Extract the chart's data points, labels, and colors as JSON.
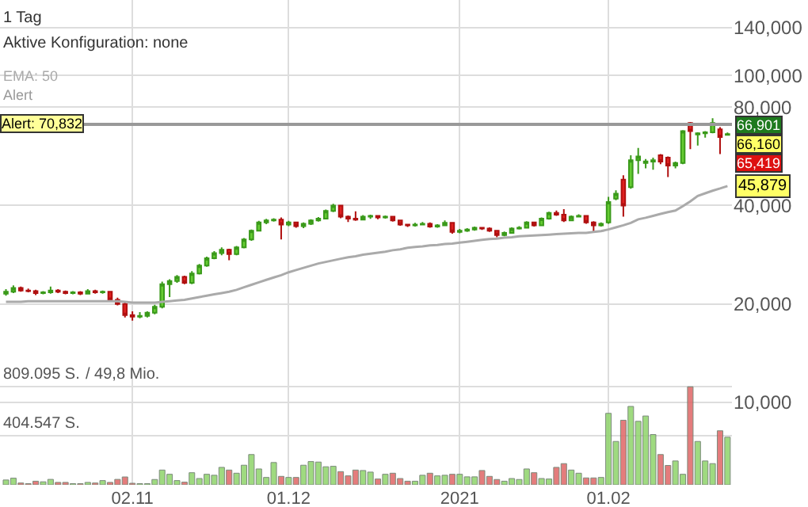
{
  "chart_data": {
    "type": "candlestick",
    "subtitle": "1 Tag",
    "annotations": [
      "Aktive Konfiguration: none",
      "Alert",
      "66,901",
      "66,160",
      "65,419",
      "/ 49,8 Mio."
    ],
    "categories": [
      null,
      null,
      null,
      null,
      null,
      null,
      null,
      null,
      null,
      null,
      null,
      null,
      null,
      null,
      null,
      null,
      null,
      "02.11",
      null,
      null,
      null,
      null,
      null,
      null,
      null,
      null,
      null,
      null,
      null,
      null,
      null,
      null,
      null,
      null,
      null,
      null,
      null,
      null,
      "01.12",
      null,
      null,
      null,
      null,
      null,
      null,
      null,
      null,
      null,
      null,
      null,
      null,
      null,
      null,
      null,
      null,
      null,
      null,
      null,
      null,
      null,
      null,
      "2021",
      null,
      null,
      null,
      null,
      null,
      null,
      null,
      null,
      null,
      null,
      null,
      null,
      null,
      null,
      null,
      null,
      null,
      null,
      null,
      "01.02",
      null,
      null,
      null,
      null,
      null,
      null,
      null,
      null,
      null,
      null,
      null,
      null,
      null,
      null,
      null,
      null
    ],
    "ohlc": [
      [
        21500,
        22200,
        21200,
        21800
      ],
      [
        21800,
        22800,
        21600,
        22400
      ],
      [
        22400,
        22600,
        21800,
        22000
      ],
      [
        22000,
        22300,
        21700,
        21900
      ],
      [
        21900,
        22100,
        21300,
        21600
      ],
      [
        21600,
        21900,
        21400,
        21700
      ],
      [
        21700,
        22600,
        21500,
        22000
      ],
      [
        22000,
        22200,
        21600,
        21800
      ],
      [
        21800,
        22000,
        21400,
        21600
      ],
      [
        21600,
        21900,
        21400,
        21700
      ],
      [
        21700,
        21900,
        21300,
        21500
      ],
      [
        21500,
        22200,
        21400,
        21900
      ],
      [
        21900,
        22100,
        21500,
        21700
      ],
      [
        21700,
        22000,
        21500,
        21800
      ],
      [
        21800,
        21900,
        20400,
        20600
      ],
      [
        20600,
        20900,
        19800,
        20000
      ],
      [
        20000,
        20300,
        18200,
        18500
      ],
      [
        18500,
        19000,
        17800,
        18300
      ],
      [
        18300,
        18900,
        18100,
        18400
      ],
      [
        18400,
        19000,
        18200,
        18800
      ],
      [
        18800,
        19900,
        18600,
        19600
      ],
      [
        19600,
        23400,
        19400,
        23000
      ],
      [
        23000,
        23800,
        21000,
        23500
      ],
      [
        23500,
        24500,
        23200,
        24200
      ],
      [
        24200,
        24400,
        23000,
        23200
      ],
      [
        23200,
        25200,
        23000,
        24800
      ],
      [
        24800,
        26500,
        24600,
        26200
      ],
      [
        26200,
        27900,
        26000,
        27600
      ],
      [
        27600,
        29000,
        27400,
        28600
      ],
      [
        28600,
        29800,
        28200,
        29300
      ],
      [
        29300,
        29500,
        27200,
        28400
      ],
      [
        28400,
        30100,
        28200,
        29800
      ],
      [
        29800,
        31800,
        29600,
        31500
      ],
      [
        31500,
        33800,
        31200,
        33500
      ],
      [
        33500,
        35900,
        33300,
        35500
      ],
      [
        35500,
        36400,
        35100,
        36000
      ],
      [
        36000,
        36600,
        35700,
        36200
      ],
      [
        36200,
        36800,
        31500,
        35000
      ],
      [
        35000,
        35900,
        34600,
        35500
      ],
      [
        35500,
        35700,
        34200,
        34600
      ],
      [
        34600,
        35500,
        34100,
        35200
      ],
      [
        35200,
        36300,
        34900,
        36000
      ],
      [
        36000,
        36900,
        35700,
        36500
      ],
      [
        36500,
        38900,
        36300,
        38500
      ],
      [
        38500,
        40500,
        38200,
        40000
      ],
      [
        40000,
        40200,
        36600,
        37000
      ],
      [
        37000,
        37300,
        35600,
        36500
      ],
      [
        36500,
        38400,
        35900,
        36200
      ],
      [
        36200,
        37400,
        36000,
        37000
      ],
      [
        37000,
        37500,
        36400,
        37200
      ],
      [
        37200,
        37400,
        36300,
        36800
      ],
      [
        36800,
        37300,
        36500,
        37000
      ],
      [
        37000,
        37200,
        35700,
        36000
      ],
      [
        36000,
        36200,
        34700,
        35000
      ],
      [
        35000,
        35200,
        34400,
        34800
      ],
      [
        34800,
        35400,
        34500,
        35000
      ],
      [
        35000,
        35600,
        34800,
        35200
      ],
      [
        35200,
        35500,
        34200,
        34500
      ],
      [
        34500,
        35100,
        34200,
        34800
      ],
      [
        34800,
        36000,
        34600,
        35400
      ],
      [
        35400,
        35600,
        32800,
        33200
      ],
      [
        33200,
        33900,
        32900,
        33500
      ],
      [
        33500,
        34100,
        33200,
        33800
      ],
      [
        33800,
        34500,
        33500,
        34200
      ],
      [
        34200,
        34400,
        33700,
        34000
      ],
      [
        34000,
        34300,
        33200,
        33500
      ],
      [
        33500,
        33700,
        32000,
        32500
      ],
      [
        32500,
        33300,
        32200,
        33000
      ],
      [
        33000,
        34300,
        32800,
        34000
      ],
      [
        34000,
        34600,
        33800,
        34200
      ],
      [
        34200,
        35800,
        34000,
        35500
      ],
      [
        35500,
        35700,
        34500,
        34800
      ],
      [
        34800,
        36800,
        34600,
        36500
      ],
      [
        36500,
        38300,
        36200,
        38000
      ],
      [
        38000,
        38600,
        37200,
        37500
      ],
      [
        37500,
        39000,
        35600,
        36000
      ],
      [
        36000,
        37300,
        35800,
        37000
      ],
      [
        37000,
        37600,
        36800,
        37200
      ],
      [
        37200,
        37400,
        35200,
        35500
      ],
      [
        35500,
        35800,
        33000,
        34800
      ],
      [
        34800,
        35500,
        34500,
        35200
      ],
      [
        35500,
        42500,
        35200,
        41000
      ],
      [
        42000,
        44500,
        41500,
        43500
      ],
      [
        48000,
        49500,
        37000,
        40000
      ],
      [
        45500,
        57000,
        45000,
        55000
      ],
      [
        55000,
        60000,
        50000,
        56500
      ],
      [
        54000,
        55500,
        52000,
        54600
      ],
      [
        54500,
        56000,
        51500,
        55000
      ],
      [
        57000,
        57500,
        53500,
        54500
      ],
      [
        56000,
        56500,
        48900,
        53000
      ],
      [
        53000,
        54500,
        52000,
        54000
      ],
      [
        54000,
        68000,
        53500,
        67500
      ],
      [
        71500,
        72000,
        59500,
        67500
      ],
      [
        66000,
        67000,
        61000,
        66500
      ],
      [
        66500,
        67500,
        64500,
        67000
      ],
      [
        67000,
        74000,
        66500,
        71500
      ],
      [
        68400,
        69500,
        57500,
        64800
      ],
      [
        65800,
        66901,
        65419,
        66160
      ]
    ],
    "series": [
      {
        "type": "line",
        "name": "EMA: 50",
        "color": "#aaaaaa",
        "values": [
          20300,
          20300,
          20300,
          20400,
          20400,
          20400,
          20400,
          20400,
          20400,
          20400,
          20400,
          20400,
          20400,
          20400,
          20400,
          20400,
          20300,
          20200,
          20200,
          20200,
          20200,
          20300,
          20400,
          20500,
          20600,
          20800,
          21000,
          21200,
          21400,
          21600,
          21800,
          22100,
          22500,
          22900,
          23300,
          23700,
          24100,
          24500,
          25000,
          25400,
          25800,
          26200,
          26600,
          26900,
          27200,
          27500,
          27800,
          28000,
          28300,
          28500,
          28700,
          28900,
          29200,
          29400,
          29700,
          29900,
          30000,
          30200,
          30300,
          30500,
          30600,
          30800,
          31000,
          31200,
          31400,
          31600,
          31700,
          31900,
          32000,
          32200,
          32300,
          32400,
          32500,
          32600,
          32700,
          32800,
          32900,
          33000,
          33000,
          33200,
          33400,
          33800,
          34300,
          34800,
          35400,
          36300,
          36700,
          37200,
          37700,
          38200,
          38600,
          39800,
          41200,
          42800,
          43600,
          44400,
          45100,
          45879
        ],
        "value_labels": [
          null,
          null,
          null,
          null,
          null,
          null,
          null,
          null,
          null,
          null,
          null,
          null,
          null,
          null,
          null,
          null,
          null,
          null,
          null,
          null,
          null,
          null,
          null,
          null,
          null,
          null,
          null,
          null,
          null,
          null,
          null,
          null,
          null,
          null,
          null,
          null,
          null,
          null,
          null,
          null,
          null,
          null,
          null,
          null,
          null,
          null,
          null,
          null,
          null,
          null,
          null,
          null,
          null,
          null,
          null,
          null,
          null,
          null,
          null,
          null,
          null,
          null,
          null,
          null,
          null,
          null,
          null,
          null,
          null,
          null,
          null,
          null,
          null,
          null,
          null,
          null,
          null,
          null,
          null,
          null,
          null,
          null,
          null,
          null,
          null,
          null,
          null,
          null,
          null,
          null,
          null,
          null,
          null,
          null,
          null,
          null,
          null,
          "45,879"
        ]
      },
      {
        "type": "bar",
        "axis": "y2",
        "values": [
          40,
          55,
          15,
          10,
          30,
          25,
          45,
          20,
          20,
          10,
          10,
          20,
          15,
          35,
          20,
          45,
          65,
          13,
          10,
          10,
          44,
          122,
          87,
          35,
          22,
          100,
          52,
          87,
          79,
          144,
          122,
          96,
          162,
          250,
          131,
          61,
          184,
          70,
          61,
          61,
          162,
          192,
          188,
          149,
          153,
          109,
          74,
          122,
          118,
          105,
          48,
          87,
          96,
          52,
          30,
          30,
          79,
          96,
          74,
          79,
          87,
          87,
          66,
          66,
          118,
          70,
          44,
          30,
          52,
          44,
          131,
          100,
          52,
          48,
          144,
          175,
          122,
          96,
          57,
          57,
          61,
          590,
          358,
          533,
          647,
          524,
          568,
          415,
          250,
          160,
          197,
          87,
          809,
          358,
          197,
          175,
          446,
          393
        ],
        "colors": [
          "#8fd46b",
          "#8fd46b",
          "#e06666",
          "#e06666",
          "#e06666",
          "#8fd46b",
          "#8fd46b",
          "#e06666",
          "#e06666",
          "#8fd46b",
          "#e06666",
          "#8fd46b",
          "#e06666",
          "#8fd46b",
          "#e06666",
          "#e06666",
          "#e06666",
          "#e06666",
          "#8fd46b",
          "#8fd46b",
          "#8fd46b",
          "#8fd46b",
          "#8fd46b",
          "#8fd46b",
          "#e06666",
          "#8fd46b",
          "#8fd46b",
          "#8fd46b",
          "#8fd46b",
          "#8fd46b",
          "#e06666",
          "#8fd46b",
          "#8fd46b",
          "#8fd46b",
          "#8fd46b",
          "#8fd46b",
          "#8fd46b",
          "#e06666",
          "#8fd46b",
          "#e06666",
          "#8fd46b",
          "#8fd46b",
          "#8fd46b",
          "#8fd46b",
          "#8fd46b",
          "#e06666",
          "#e06666",
          "#e06666",
          "#8fd46b",
          "#8fd46b",
          "#e06666",
          "#8fd46b",
          "#e06666",
          "#e06666",
          "#e06666",
          "#8fd46b",
          "#8fd46b",
          "#e06666",
          "#8fd46b",
          "#8fd46b",
          "#e06666",
          "#8fd46b",
          "#8fd46b",
          "#8fd46b",
          "#e06666",
          "#e06666",
          "#e06666",
          "#8fd46b",
          "#8fd46b",
          "#8fd46b",
          "#8fd46b",
          "#e06666",
          "#8fd46b",
          "#8fd46b",
          "#e06666",
          "#e06666",
          "#8fd46b",
          "#8fd46b",
          "#e06666",
          "#e06666",
          "#8fd46b",
          "#8fd46b",
          "#8fd46b",
          "#e06666",
          "#8fd46b",
          "#8fd46b",
          "#8fd46b",
          "#8fd46b",
          "#e06666",
          "#e06666",
          "#8fd46b",
          "#8fd46b",
          "#e06666",
          "#8fd46b",
          "#8fd46b",
          "#8fd46b",
          "#e06666",
          "#8fd46b"
        ]
      }
    ],
    "log": true,
    "ylim": [
      5600,
      170000
    ],
    "yticks": [
      {
        "value": 10000,
        "label": "10,000"
      },
      {
        "value": 20000,
        "label": "20,000"
      },
      {
        "value": 40000,
        "label": "40,000"
      },
      {
        "value": 80000,
        "label": "80,000"
      },
      {
        "value": 100000,
        "label": "100,000"
      },
      {
        "value": 140000,
        "label": "140,000"
      }
    ],
    "y2lim": [
      0,
      4000
    ],
    "y2ticks": [
      {
        "value": 404.547,
        "label": "404.547 S."
      },
      {
        "value": 809.095,
        "label": "809.095 S."
      }
    ],
    "ref_lines": [
      {
        "axis": "y",
        "value": 70832,
        "label": "Alert: 70,832",
        "color": "#999999"
      }
    ],
    "grid": true
  }
}
